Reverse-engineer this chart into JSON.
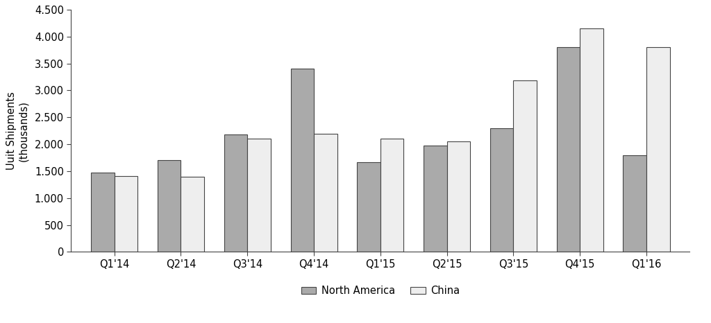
{
  "categories": [
    "Q1'14",
    "Q2'14",
    "Q3'14",
    "Q4'14",
    "Q1'15",
    "Q2'15",
    "Q3'15",
    "Q4'15",
    "Q1'16"
  ],
  "north_america": [
    1480,
    1700,
    2180,
    3400,
    1670,
    1970,
    2300,
    3800,
    1800
  ],
  "china": [
    1410,
    1400,
    2100,
    2200,
    2100,
    2050,
    3190,
    4150,
    3800
  ],
  "na_color": "#aaaaaa",
  "china_color": "#eeeeee",
  "bar_edge_color": "#444444",
  "ylabel": "Uuit Shipments\n(thousands)",
  "ylim": [
    0,
    4500
  ],
  "yticks": [
    0,
    500,
    1000,
    1500,
    2000,
    2500,
    3000,
    3500,
    4000,
    4500
  ],
  "legend_labels": [
    "North America",
    "China"
  ],
  "background_color": "#ffffff",
  "bar_width": 0.35,
  "figsize": [
    10.24,
    4.66
  ],
  "dpi": 100
}
